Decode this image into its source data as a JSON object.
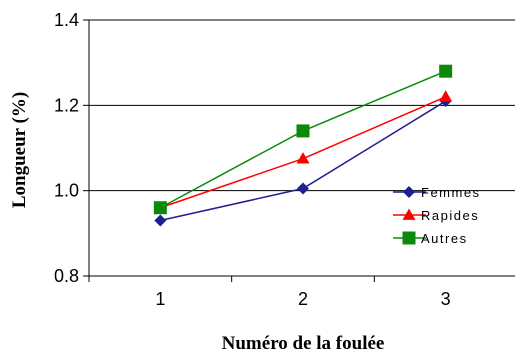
{
  "chart_data": {
    "type": "line",
    "title": "",
    "xlabel": "Numéro de la foulée",
    "ylabel": "Longueur (%)",
    "x": [
      1,
      2,
      3
    ],
    "x_tick_labels": [
      "1",
      "2",
      "3"
    ],
    "ylim": [
      0.8,
      1.4
    ],
    "y_ticks": [
      0.8,
      1.0,
      1.2,
      1.4
    ],
    "y_tick_labels": [
      "0.8",
      "1.0",
      "1.2",
      "1.4"
    ],
    "grid": "horizontal major",
    "legend_position": "right",
    "series": [
      {
        "name": "Femmes",
        "values": [
          0.93,
          1.005,
          1.21
        ],
        "color": "#1f1f8f",
        "marker": "diamond"
      },
      {
        "name": "Rapides",
        "values": [
          0.96,
          1.075,
          1.22
        ],
        "color": "#ff0000",
        "marker": "triangle"
      },
      {
        "name": "Autres",
        "values": [
          0.96,
          1.14,
          1.28
        ],
        "color": "#0a8a0a",
        "marker": "square"
      }
    ]
  }
}
